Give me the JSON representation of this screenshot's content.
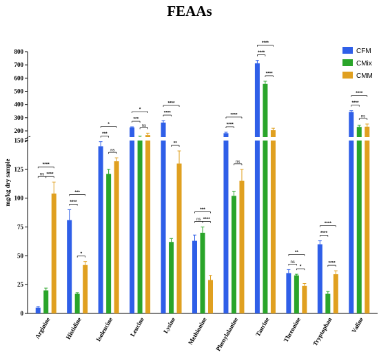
{
  "chart_data": {
    "type": "bar",
    "title": "FEAAs",
    "ylabel": "mg/kg dry sample",
    "xlabel": "",
    "ylim_lower": [
      0,
      150
    ],
    "ylim_upper": [
      150,
      800
    ],
    "yticks_lower": [
      0,
      25,
      50,
      75,
      100,
      125,
      150
    ],
    "yticks_upper": [
      200,
      300,
      400,
      500,
      600,
      700,
      800
    ],
    "categories": [
      "Arginine",
      "Histidine",
      "Isoleucine",
      "Leucine",
      "Lysine",
      "Methionine",
      "Phenylalanine",
      "Taurine",
      "Threonine",
      "Tryptophan",
      "Valine"
    ],
    "series": [
      {
        "name": "CFM",
        "color": "#2f5fe8",
        "values": [
          5,
          81,
          145,
          226,
          263,
          63,
          188,
          712,
          35,
          60,
          343
        ],
        "errors": [
          1,
          9,
          4,
          5,
          15,
          5,
          5,
          22,
          3,
          3,
          10
        ]
      },
      {
        "name": "CMix",
        "color": "#2aa52a",
        "values": [
          20,
          17,
          121,
          165,
          62,
          70,
          102,
          556,
          33,
          17,
          230
        ],
        "errors": [
          2,
          1,
          4,
          8,
          3,
          5,
          4,
          20,
          1,
          2,
          12
        ]
      },
      {
        "name": "CMM",
        "color": "#e0a020",
        "values": [
          104,
          42,
          132,
          178,
          130,
          29,
          115,
          205,
          24,
          34,
          232
        ],
        "errors": [
          10,
          3,
          3,
          10,
          11,
          4,
          10,
          15,
          2,
          3,
          20
        ]
      }
    ],
    "significance": [
      [
        [
          "ns",
          "****",
          "****"
        ],
        [
          "****",
          "*",
          "***"
        ],
        [
          "***",
          "ns",
          "*"
        ],
        [
          "***",
          "ns",
          "*"
        ],
        [
          "****",
          "**",
          "****"
        ],
        [
          "ns",
          "****",
          "***"
        ],
        [
          "****",
          "ns",
          "****"
        ],
        [
          "****",
          "****",
          "****"
        ],
        [
          "ns",
          "*",
          "**"
        ],
        [
          "****",
          "****",
          "****"
        ],
        [
          "****",
          "ns",
          "****"
        ]
      ]
    ],
    "legend_position": "top-right",
    "grid": false
  }
}
